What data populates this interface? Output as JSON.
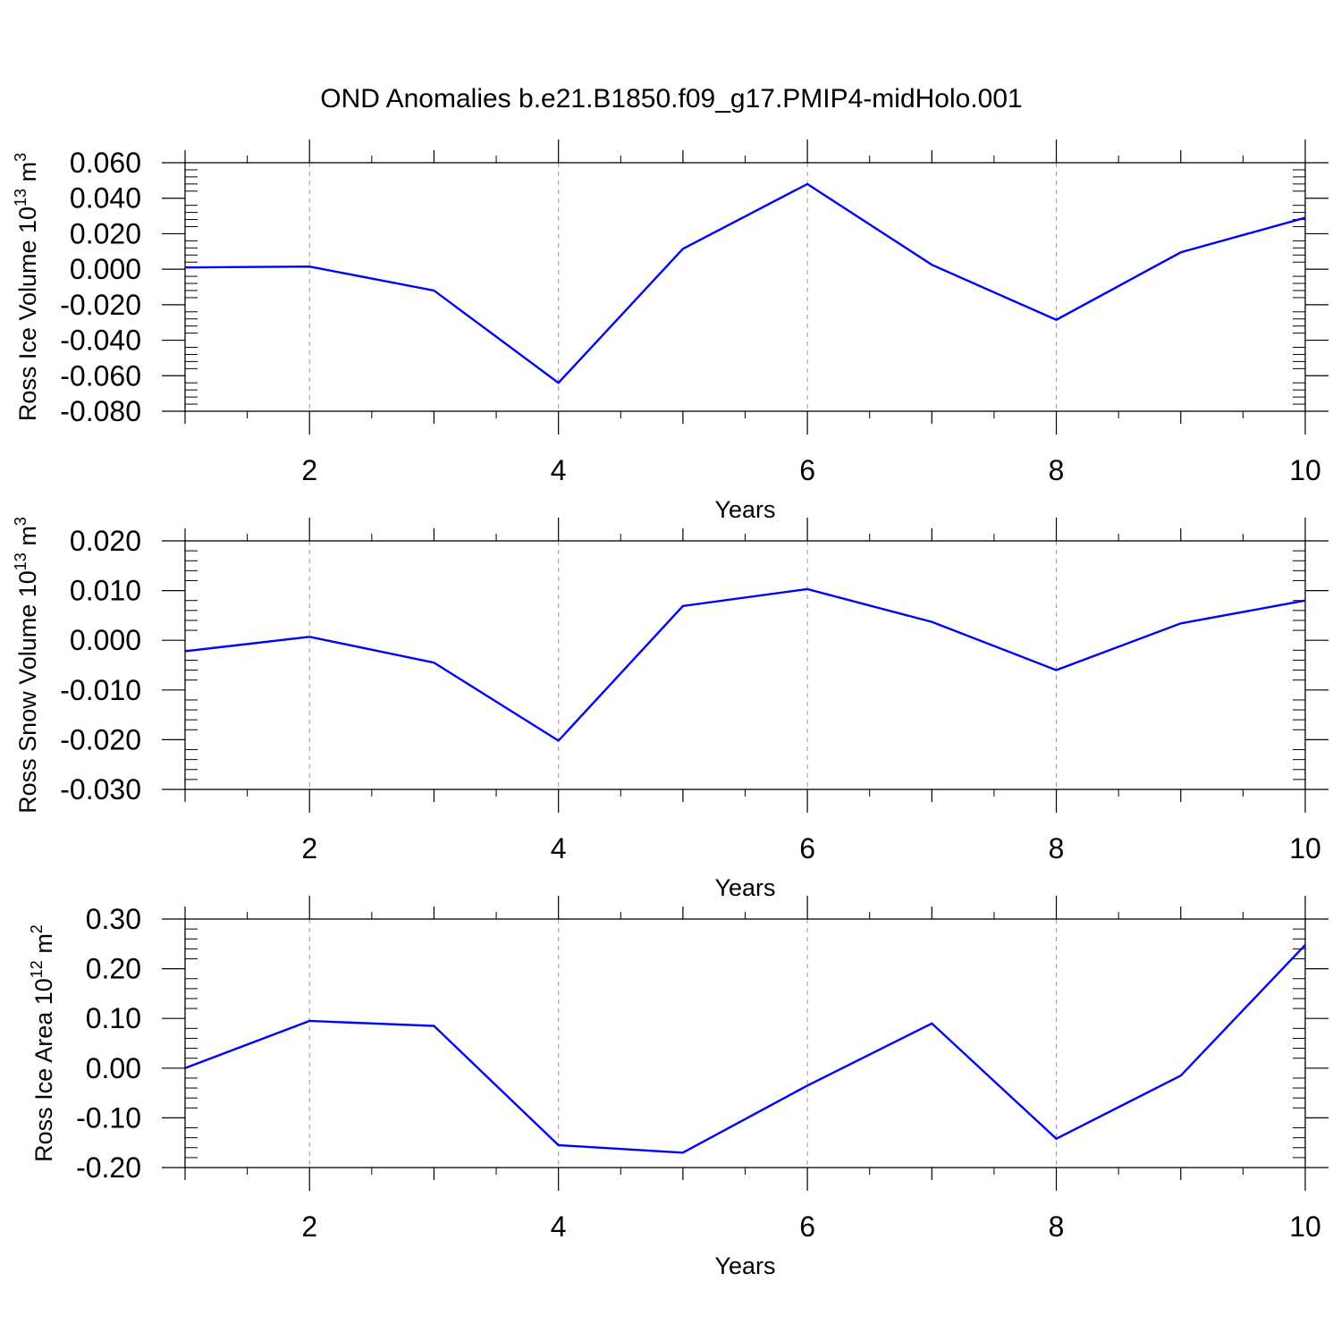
{
  "title": "OND Anomalies b.e21.B1850.f09_g17.PMIP4-midHolo.001",
  "colors": {
    "line": "#0000ff",
    "axis": "#000000",
    "grid": "#999999"
  },
  "chart_data": [
    {
      "type": "line",
      "title": "OND Anomalies b.e21.B1850.f09_g17.PMIP4-midHolo.001",
      "xlabel": "Years",
      "ylabel": {
        "text": "Ross Ice Volume 10",
        "sup": "13",
        "unit": " m",
        "unit_sup": "3"
      },
      "xlim": [
        1,
        10
      ],
      "ylim": [
        -0.08,
        0.06
      ],
      "xticks": [
        2,
        4,
        6,
        8,
        10
      ],
      "xtick_labels": [
        "2",
        "4",
        "6",
        "8",
        "10"
      ],
      "yticks": [
        -0.08,
        -0.06,
        -0.04,
        -0.02,
        0.0,
        0.02,
        0.04,
        0.06
      ],
      "ytick_labels": [
        "-0.080",
        "-0.060",
        "-0.040",
        "-0.020",
        "0.000",
        "0.020",
        "0.040",
        "0.060"
      ],
      "grid": "vertical-dashed",
      "x": [
        1,
        2,
        3,
        4,
        5,
        6,
        7,
        8,
        9,
        10
      ],
      "series": [
        {
          "name": "Ross Ice Volume",
          "values": [
            0.001,
            0.0015,
            -0.012,
            -0.064,
            0.0115,
            0.048,
            0.0025,
            -0.0285,
            0.0095,
            0.029
          ]
        }
      ]
    },
    {
      "type": "line",
      "xlabel": "Years",
      "ylabel": {
        "text": "Ross Snow Volume 10",
        "sup": "13",
        "unit": " m",
        "unit_sup": "3"
      },
      "xlim": [
        1,
        10
      ],
      "ylim": [
        -0.03,
        0.02
      ],
      "xticks": [
        2,
        4,
        6,
        8,
        10
      ],
      "xtick_labels": [
        "2",
        "4",
        "6",
        "8",
        "10"
      ],
      "yticks": [
        -0.03,
        -0.02,
        -0.01,
        0.0,
        0.01,
        0.02
      ],
      "ytick_labels": [
        "-0.030",
        "-0.020",
        "-0.010",
        "0.000",
        "0.010",
        "0.020"
      ],
      "grid": "vertical-dashed",
      "x": [
        1,
        2,
        3,
        4,
        5,
        6,
        7,
        8,
        9,
        10
      ],
      "series": [
        {
          "name": "Ross Snow Volume",
          "values": [
            -0.0022,
            0.0007,
            -0.0045,
            -0.0202,
            0.0069,
            0.0103,
            0.0037,
            -0.006,
            0.0034,
            0.008
          ]
        }
      ]
    },
    {
      "type": "line",
      "xlabel": "Years",
      "ylabel": {
        "text": "Ross Ice Area 10",
        "sup": "12",
        "unit": " m",
        "unit_sup": "2"
      },
      "xlim": [
        1,
        10
      ],
      "ylim": [
        -0.2,
        0.3
      ],
      "xticks": [
        2,
        4,
        6,
        8,
        10
      ],
      "xtick_labels": [
        "2",
        "4",
        "6",
        "8",
        "10"
      ],
      "yticks": [
        -0.2,
        -0.1,
        0.0,
        0.1,
        0.2,
        0.3
      ],
      "ytick_labels": [
        "-0.20",
        "-0.10",
        "0.00",
        "0.10",
        "0.20",
        "0.30"
      ],
      "grid": "vertical-dashed",
      "x": [
        1,
        2,
        3,
        4,
        5,
        6,
        7,
        8,
        9,
        10
      ],
      "series": [
        {
          "name": "Ross Ice Area",
          "values": [
            0.0,
            0.095,
            0.085,
            -0.155,
            -0.17,
            -0.035,
            0.09,
            -0.142,
            -0.015,
            0.248
          ]
        }
      ]
    }
  ]
}
